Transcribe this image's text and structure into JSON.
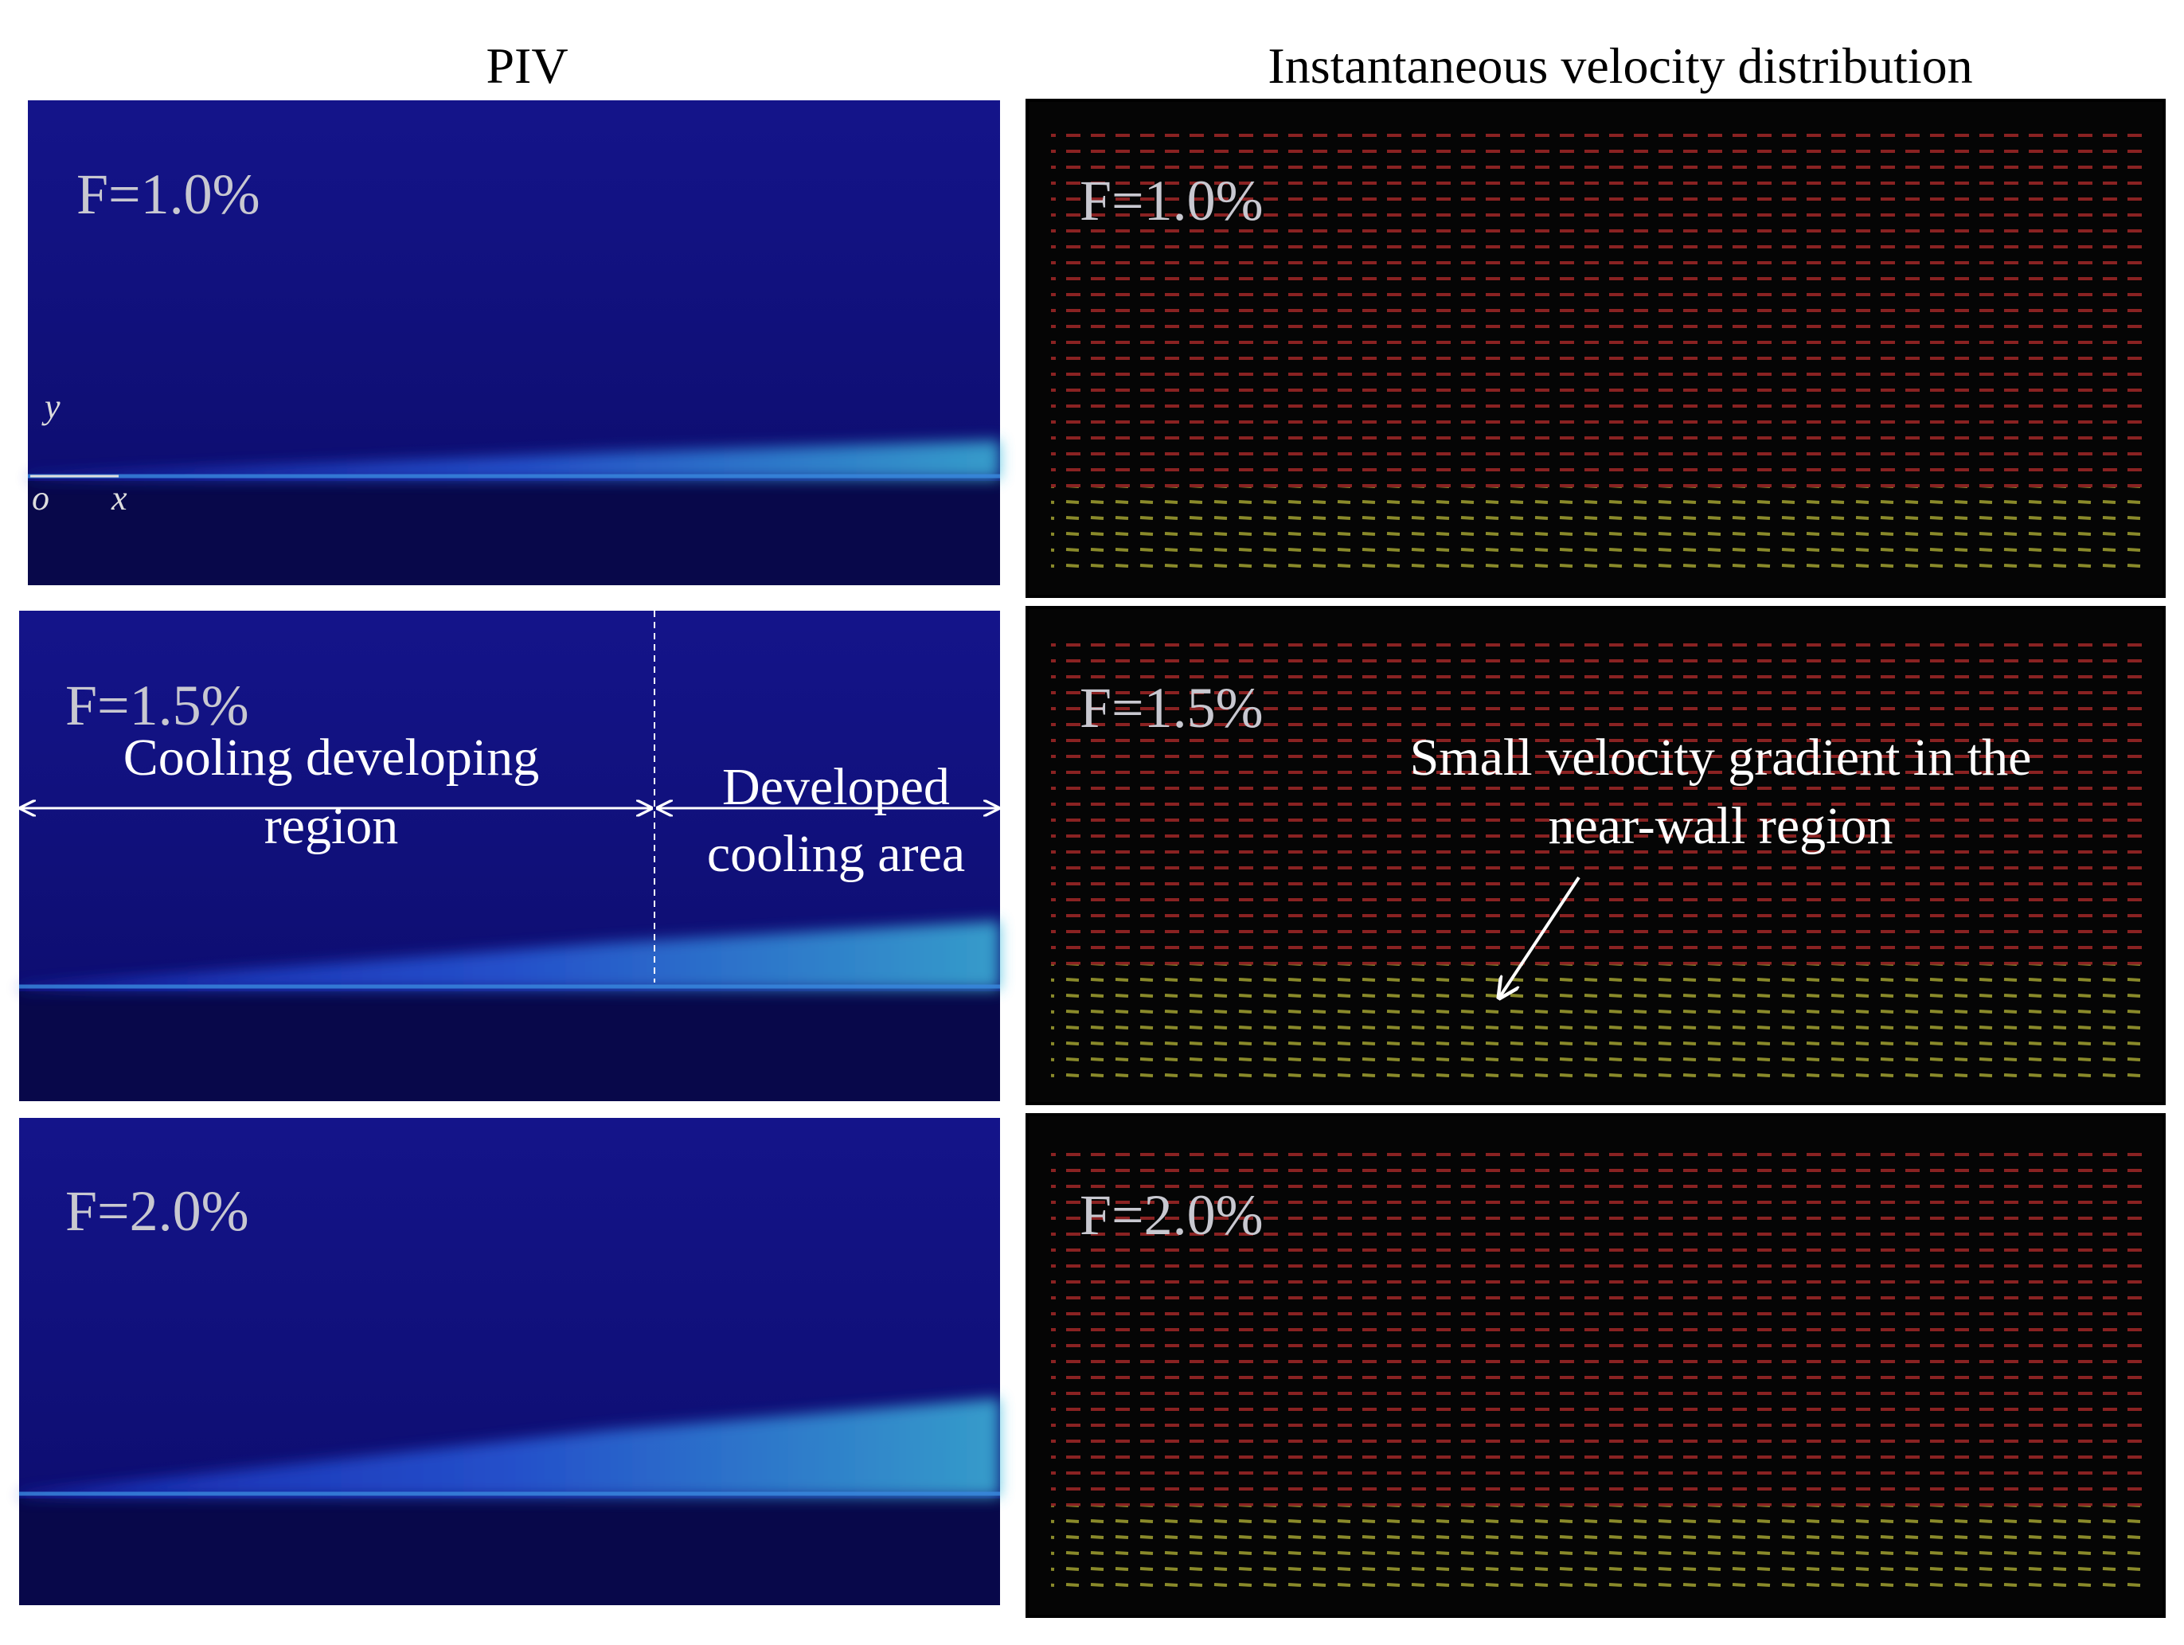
{
  "titles": {
    "left": "PIV",
    "right": "Instantaneous velocity distribution"
  },
  "piv_panels": [
    {
      "label": "F=1.0%"
    },
    {
      "label": "F=1.5%"
    },
    {
      "label": "F=2.0%"
    }
  ],
  "velocity_panels": [
    {
      "label": "F=1.0%"
    },
    {
      "label": "F=1.5%"
    },
    {
      "label": "F=2.0%"
    }
  ],
  "axes": {
    "y": "y",
    "origin": "o",
    "x": "x"
  },
  "annotations": {
    "cooling_developing_region": [
      "Cooling developing",
      "region"
    ],
    "developed_cooling_area": [
      "Developed",
      "cooling area"
    ],
    "small_velocity_gradient": [
      "Small velocity gradient in the",
      "near-wall region"
    ]
  }
}
